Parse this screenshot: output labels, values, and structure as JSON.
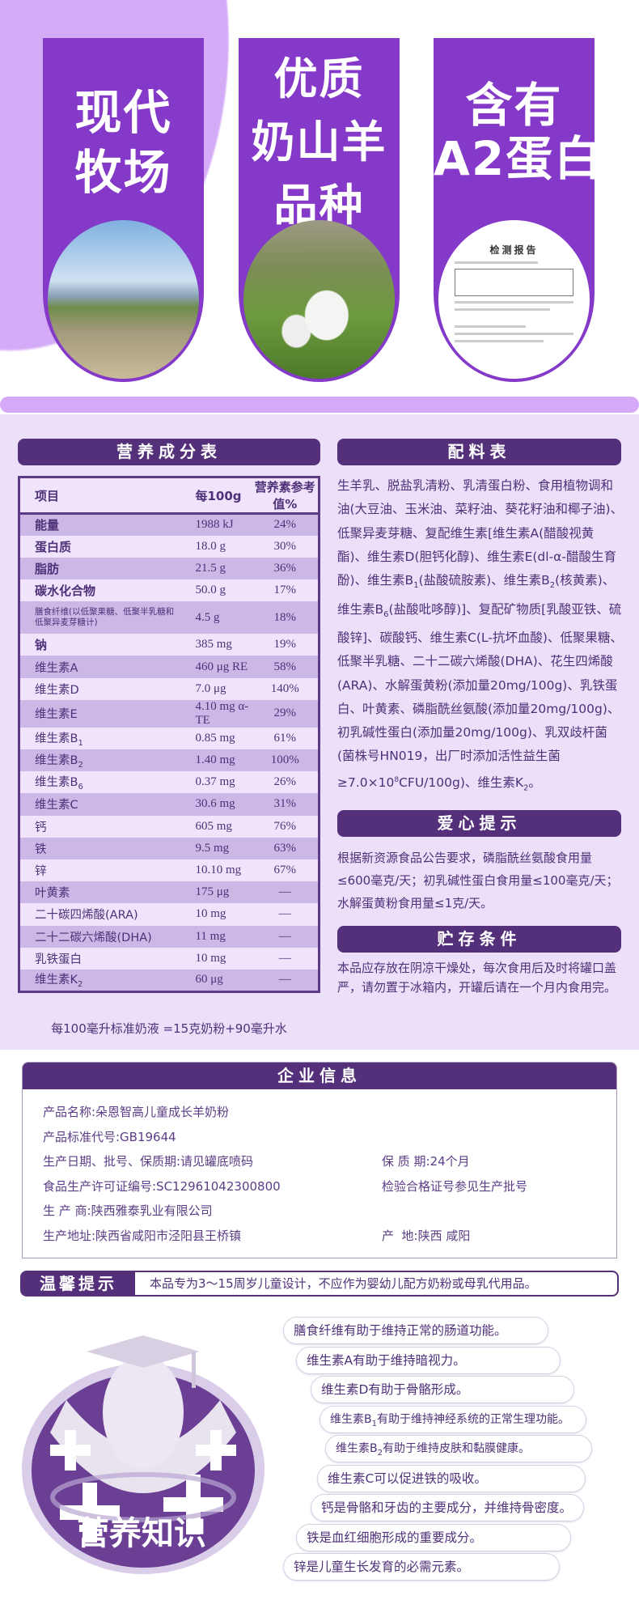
{
  "banners": [
    {
      "title": "现代\n牧场",
      "image": "modern-farm-photo"
    },
    {
      "title": "优质\n奶山羊\n品种",
      "image": "dairy-goats-photo"
    },
    {
      "title": "含有\nA2蛋白",
      "image": "test-report-document",
      "report_title": "检测报告"
    }
  ],
  "nutrition": {
    "title": "营养成分表",
    "headers": [
      "项目",
      "每100g",
      "营养素参考值%"
    ],
    "rows": [
      {
        "name": "能量",
        "value": "1988 kJ",
        "nrv": "24%"
      },
      {
        "name": "蛋白质",
        "value": "18.0 g",
        "nrv": "30%"
      },
      {
        "name": "脂肪",
        "value": "21.5 g",
        "nrv": "36%"
      },
      {
        "name": "碳水化合物",
        "value": "50.0 g",
        "nrv": "17%"
      },
      {
        "name": "膳食纤维(以低聚果糖、低聚半乳糖和低聚异麦芽糖计)",
        "value": "4.5 g",
        "nrv": "18%"
      },
      {
        "name": "钠",
        "value": "385 mg",
        "nrv": "19%"
      },
      {
        "name": "维生素A",
        "value": "460 μg RE",
        "nrv": "58%"
      },
      {
        "name": "维生素D",
        "value": "7.0 μg",
        "nrv": "140%"
      },
      {
        "name": "维生素E",
        "value": "4.10 mg α-TE",
        "nrv": "29%"
      },
      {
        "name": "维生素B",
        "sub": "1",
        "value": "0.85 mg",
        "nrv": "61%"
      },
      {
        "name": "维生素B",
        "sub": "2",
        "value": "1.40 mg",
        "nrv": "100%"
      },
      {
        "name": "维生素B",
        "sub": "6",
        "value": "0.37 mg",
        "nrv": "26%"
      },
      {
        "name": "维生素C",
        "value": "30.6 mg",
        "nrv": "31%"
      },
      {
        "name": "钙",
        "value": "605 mg",
        "nrv": "76%"
      },
      {
        "name": "铁",
        "value": "9.5 mg",
        "nrv": "63%"
      },
      {
        "name": "锌",
        "value": "10.10 mg",
        "nrv": "67%"
      },
      {
        "name": "叶黄素",
        "value": "175 μg",
        "nrv": "—"
      },
      {
        "name": "二十碳四烯酸(ARA)",
        "value": "10 mg",
        "nrv": "—"
      },
      {
        "name": "二十二碳六烯酸(DHA)",
        "value": "11 mg",
        "nrv": "—"
      },
      {
        "name": "乳铁蛋白",
        "value": "10 mg",
        "nrv": "—"
      },
      {
        "name": "维生素K",
        "sub": "2",
        "value": "60 μg",
        "nrv": "—"
      }
    ],
    "footnote": "每100毫升标准奶液 =15克奶粉+90毫升水"
  },
  "ingredients": {
    "title": "配料表",
    "parts": [
      {
        "t": "生羊乳、脱盐乳清粉、乳清蛋白粉、食用植物调和油(大豆油、玉米油、菜籽油、葵花籽油和椰子油)、低聚异麦芽糖、复配维生素[维生素A(醋酸视黄酯)、维生素D(胆钙化醇)、维生素E(dl-α-醋酸生育酚)、维生素B"
      },
      {
        "sub": "1"
      },
      {
        "t": "(盐酸硫胺素)、维生素B"
      },
      {
        "sub": "2"
      },
      {
        "t": "(核黄素)、维生素B"
      },
      {
        "sub": "6"
      },
      {
        "t": "(盐酸吡哆醇)]、复配矿物质[乳酸亚铁、硫酸锌]、碳酸钙、维生素C(L-抗坏血酸)、低聚果糖、低聚半乳糖、二十二碳六烯酸(DHA)、花生四烯酸(ARA)、水解蛋黄粉(添加量20mg/100g)、乳铁蛋白、叶黄素、磷脂酰丝氨酸(添加量20mg/100g)、初乳碱性蛋白(添加量20mg/100g)、乳双歧杆菌(菌株号HN019，出厂时添加活性益生菌≥7.0×10"
      },
      {
        "sup": "8"
      },
      {
        "t": "CFU/100g)、维生素K"
      },
      {
        "sub": "2"
      },
      {
        "t": "。"
      }
    ]
  },
  "care_tip": {
    "title": "爱心提示",
    "text": "根据新资源食品公告要求，磷脂酰丝氨酸食用量≤600毫克/天；初乳碱性蛋白食用量≤100毫克/天；水解蛋黄粉食用量≤1克/天。"
  },
  "storage": {
    "title": "贮存条件",
    "text": "本品应存放在阴凉干燥处，每次食用后及时将罐口盖严，请勿置于冰箱内，开罐后请在一个月内食用完。"
  },
  "company": {
    "title": "企业信息",
    "product_name": "产品名称:朵恩智高儿童成长羊奶粉",
    "standard": "产品标准代号:GB19644",
    "date_batch": "生产日期、批号、保质期:请见罐底喷码",
    "shelf_life": "保 质 期:24个月",
    "license": "食品生产许可证编号:SC12961042300800",
    "inspection": "检验合格证号参见生产批号",
    "manufacturer": "生 产 商:陕西雅泰乳业有限公司",
    "address": "生产地址:陕西省咸阳市泾阳县王桥镇",
    "origin": "产  地:陕西 咸阳"
  },
  "warm_tip": {
    "label": "温馨提示",
    "text": "本品专为3～15周岁儿童设计，不应作为婴幼儿配方奶粉或母乳代用品。"
  },
  "knowledge": {
    "title": "营养知识",
    "items": [
      {
        "t": "膳食纤维有助于维持正常的肠道功能。"
      },
      {
        "t": "维生素A有助于维持暗视力。"
      },
      {
        "t": "维生素D有助于骨骼形成。"
      },
      {
        "t": "维生素B",
        "sub": "1",
        "rest": "有助于维持神经系统的正常生理功能。"
      },
      {
        "t": "维生素B",
        "sub": "2",
        "rest": "有助于维持皮肤和黏膜健康。"
      },
      {
        "t": "维生素C可以促进铁的吸收。"
      },
      {
        "t": "钙是骨骼和牙齿的主要成分，并维持骨密度。"
      },
      {
        "t": "铁是血红细胞形成的重要成分。"
      },
      {
        "t": "锌是儿童生长发育的必需元素。"
      }
    ]
  },
  "colors": {
    "primary": "#8439c9",
    "dark": "#55307a",
    "lavender": "#ebdff9",
    "text": "#4e3178"
  }
}
